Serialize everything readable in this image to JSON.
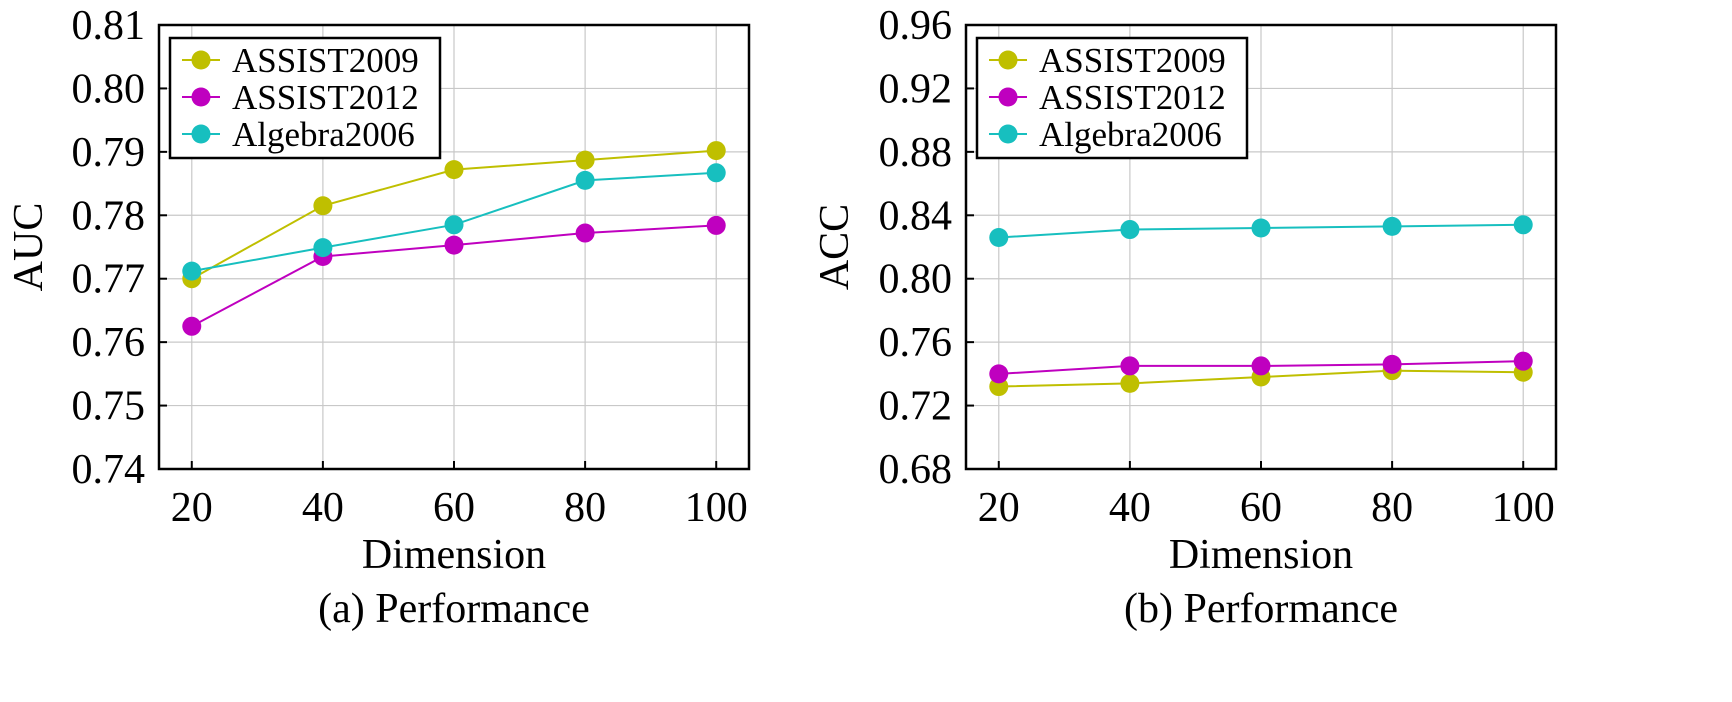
{
  "chart_data": [
    {
      "type": "line",
      "caption": "(a) Performance",
      "xlabel": "Dimension",
      "ylabel": "AUC",
      "x": [
        20,
        40,
        60,
        80,
        100
      ],
      "xticks": [
        "20",
        "40",
        "60",
        "80",
        "100"
      ],
      "ylim": [
        0.74,
        0.81
      ],
      "yticks": [
        "0.74",
        "0.75",
        "0.76",
        "0.77",
        "0.78",
        "0.79",
        "0.80",
        "0.81"
      ],
      "grid": true,
      "legend_position": "top-left",
      "series": [
        {
          "name": "ASSIST2009",
          "color": "#bfbf00",
          "values": [
            0.77,
            0.7815,
            0.7872,
            0.7887,
            0.7902
          ]
        },
        {
          "name": "ASSIST2012",
          "color": "#bf00bf",
          "values": [
            0.7625,
            0.7735,
            0.7753,
            0.7772,
            0.7784
          ]
        },
        {
          "name": "Algebra2006",
          "color": "#17bfbf",
          "values": [
            0.7712,
            0.7749,
            0.7785,
            0.7855,
            0.7867
          ]
        }
      ]
    },
    {
      "type": "line",
      "caption": "(b) Performance",
      "xlabel": "Dimension",
      "ylabel": "ACC",
      "x": [
        20,
        40,
        60,
        80,
        100
      ],
      "xticks": [
        "20",
        "40",
        "60",
        "80",
        "100"
      ],
      "ylim": [
        0.68,
        0.96
      ],
      "yticks": [
        "0.68",
        "0.72",
        "0.76",
        "0.80",
        "0.84",
        "0.88",
        "0.92",
        "0.96"
      ],
      "grid": true,
      "legend_position": "top-left",
      "series": [
        {
          "name": "ASSIST2009",
          "color": "#bfbf00",
          "values": [
            0.732,
            0.734,
            0.738,
            0.742,
            0.741
          ]
        },
        {
          "name": "ASSIST2012",
          "color": "#bf00bf",
          "values": [
            0.74,
            0.745,
            0.745,
            0.746,
            0.748
          ]
        },
        {
          "name": "Algebra2006",
          "color": "#17bfbf",
          "values": [
            0.826,
            0.831,
            0.832,
            0.833,
            0.834
          ]
        }
      ]
    }
  ]
}
